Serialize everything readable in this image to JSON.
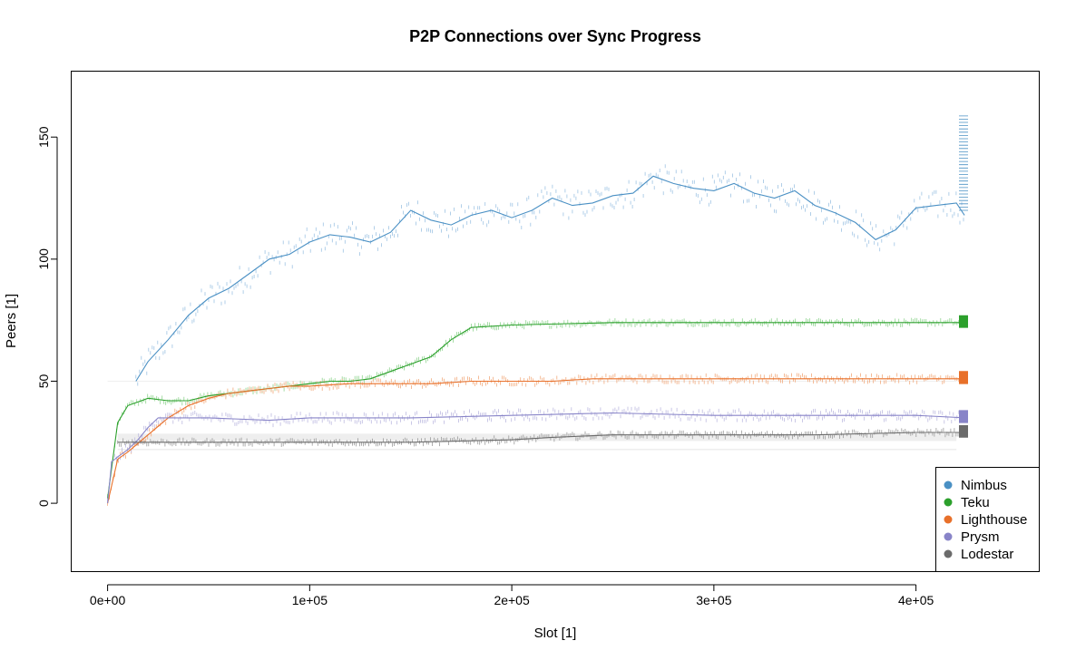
{
  "chart_data": {
    "type": "line",
    "title": "P2P Connections over Sync Progress",
    "xlabel": "Slot [1]",
    "ylabel": "Peers [1]",
    "xlim": [
      -18000,
      461000
    ],
    "ylim": [
      -28,
      177
    ],
    "x_ticks": [
      0,
      100000,
      200000,
      300000,
      400000
    ],
    "x_tick_labels": [
      "0e+00",
      "1e+05",
      "2e+05",
      "3e+05",
      "4e+05"
    ],
    "y_ticks": [
      0,
      50,
      100,
      150
    ],
    "y_tick_labels": [
      "0",
      "50",
      "100",
      "150"
    ],
    "grid": false,
    "legend_position": "bottom-right",
    "series": [
      {
        "name": "Nimbus",
        "color": "#4a90c4",
        "raw_color": "#9ec3e3",
        "x": [
          14000,
          20000,
          30000,
          40000,
          50000,
          60000,
          70000,
          80000,
          90000,
          100000,
          110000,
          120000,
          130000,
          140000,
          150000,
          160000,
          170000,
          180000,
          190000,
          200000,
          210000,
          220000,
          230000,
          240000,
          250000,
          260000,
          270000,
          280000,
          290000,
          300000,
          310000,
          320000,
          330000,
          340000,
          350000,
          360000,
          370000,
          380000,
          390000,
          400000,
          410000,
          420000,
          424000
        ],
        "y": [
          50,
          58,
          67,
          77,
          84,
          88,
          94,
          100,
          102,
          107,
          110,
          109,
          107,
          111,
          120,
          116,
          114,
          118,
          120,
          117,
          120,
          125,
          122,
          123,
          126,
          127,
          134,
          131,
          129,
          128,
          131,
          127,
          125,
          128,
          122,
          119,
          115,
          108,
          112,
          121,
          122,
          123,
          118
        ]
      },
      {
        "name": "Teku",
        "color": "#2ca02c",
        "raw_color": "#8fd48f",
        "x": [
          0,
          5000,
          10000,
          20000,
          30000,
          40000,
          50000,
          60000,
          70000,
          80000,
          90000,
          100000,
          110000,
          120000,
          130000,
          140000,
          150000,
          160000,
          170000,
          180000,
          200000,
          250000,
          300000,
          350000,
          400000,
          425000
        ],
        "y": [
          2,
          33,
          40,
          43,
          42,
          42,
          44,
          45,
          46,
          47,
          48,
          49,
          50,
          50,
          51,
          54,
          57,
          60,
          67,
          72,
          73,
          74,
          74,
          74,
          74,
          74
        ]
      },
      {
        "name": "Lighthouse",
        "color": "#e8702a",
        "raw_color": "#f2aa7d",
        "x": [
          0,
          5000,
          10000,
          20000,
          30000,
          40000,
          50000,
          60000,
          70000,
          80000,
          90000,
          100000,
          120000,
          140000,
          160000,
          180000,
          200000,
          220000,
          240000,
          300000,
          350000,
          400000,
          425000
        ],
        "y": [
          0,
          18,
          21,
          28,
          35,
          40,
          43,
          45,
          46,
          47,
          48,
          48,
          49,
          49,
          49,
          50,
          50,
          50,
          51,
          51,
          51,
          51,
          51
        ]
      },
      {
        "name": "Prysm",
        "color": "#8884c8",
        "raw_color": "#bdbae0",
        "x": [
          0,
          2000,
          5000,
          10000,
          15000,
          20000,
          25000,
          30000,
          50000,
          80000,
          100000,
          150000,
          200000,
          250000,
          300000,
          350000,
          400000,
          425000
        ],
        "y": [
          0,
          17,
          19,
          22,
          26,
          31,
          35,
          35,
          35,
          34,
          35,
          35,
          36,
          37,
          36,
          36,
          36,
          35
        ]
      },
      {
        "name": "Lodestar",
        "color": "#6b6b6b",
        "raw_color": "#9a9a9a",
        "x": [
          5000,
          50000,
          100000,
          150000,
          200000,
          220000,
          250000,
          300000,
          350000,
          400000,
          425000
        ],
        "y": [
          25,
          25,
          25,
          25,
          26,
          27,
          28,
          28,
          28,
          29,
          29
        ]
      }
    ]
  }
}
